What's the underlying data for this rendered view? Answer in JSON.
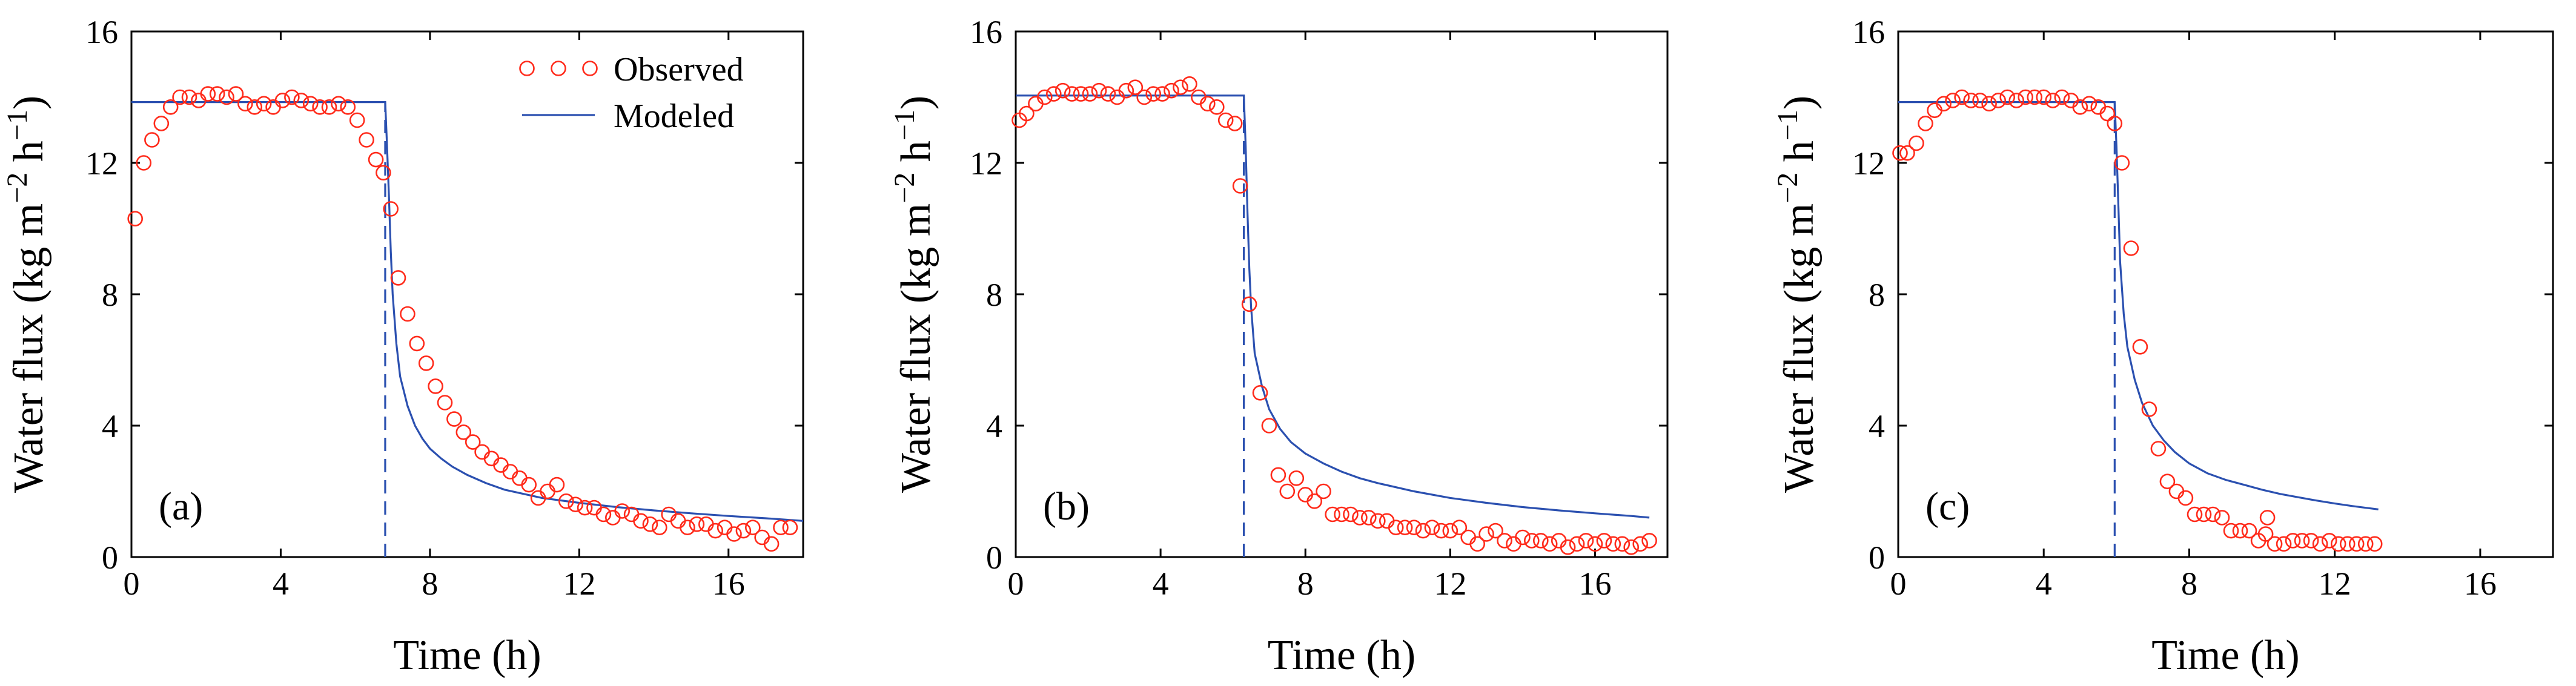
{
  "colors": {
    "observed": "#ff2a1a",
    "modeled": "#2b50b0",
    "axes": "#000000"
  },
  "legend": {
    "observed_label": "Observed",
    "modeled_label": "Modeled",
    "position": "top-right of panel (a)"
  },
  "chart_data": [
    {
      "type": "scatter+line",
      "panel_label": "(a)",
      "xlabel": "Time (h)",
      "ylabel": "Water flux (kg m−2 h−1)",
      "ylabel_parts": {
        "base": "Water flux (kg m",
        "exp1": "−2",
        "mid": " h",
        "exp2": "−1",
        "end": ")"
      },
      "xlim": [
        0,
        18
      ],
      "ylim": [
        0,
        16
      ],
      "xticks": [
        0,
        4,
        8,
        12,
        16
      ],
      "yticks": [
        0,
        4,
        8,
        12,
        16
      ],
      "switch_time": 6.8,
      "observed": {
        "name": "Observed",
        "x": [
          0.1,
          0.33,
          0.55,
          0.8,
          1.05,
          1.3,
          1.55,
          1.8,
          2.05,
          2.3,
          2.55,
          2.8,
          3.05,
          3.3,
          3.55,
          3.8,
          4.05,
          4.3,
          4.55,
          4.8,
          5.05,
          5.3,
          5.55,
          5.8,
          6.05,
          6.3,
          6.55,
          6.75,
          6.95,
          7.15,
          7.4,
          7.65,
          7.9,
          8.15,
          8.4,
          8.65,
          8.9,
          9.15,
          9.4,
          9.65,
          9.9,
          10.15,
          10.4,
          10.65,
          10.9,
          11.15,
          11.4,
          11.65,
          11.9,
          12.15,
          12.4,
          12.65,
          12.9,
          13.15,
          13.4,
          13.65,
          13.9,
          14.15,
          14.4,
          14.65,
          14.9,
          15.15,
          15.4,
          15.65,
          15.9,
          16.15,
          16.4,
          16.65,
          16.9,
          17.15,
          17.4,
          17.65
        ],
        "y": [
          10.3,
          12.0,
          12.7,
          13.2,
          13.7,
          14.0,
          14.0,
          13.9,
          14.1,
          14.1,
          14.0,
          14.1,
          13.8,
          13.7,
          13.8,
          13.7,
          13.9,
          14.0,
          13.9,
          13.8,
          13.7,
          13.7,
          13.8,
          13.7,
          13.3,
          12.7,
          12.1,
          11.7,
          10.6,
          8.5,
          7.4,
          6.5,
          5.9,
          5.2,
          4.7,
          4.2,
          3.8,
          3.5,
          3.2,
          3.0,
          2.8,
          2.6,
          2.4,
          2.2,
          1.8,
          2.0,
          2.2,
          1.7,
          1.6,
          1.5,
          1.5,
          1.3,
          1.2,
          1.4,
          1.3,
          1.1,
          1.0,
          0.9,
          1.3,
          1.1,
          0.9,
          1.0,
          1.0,
          0.8,
          0.9,
          0.7,
          0.8,
          0.9,
          0.6,
          0.4,
          0.9,
          0.9
        ]
      },
      "modeled": {
        "name": "Modeled",
        "x": [
          0,
          6.8,
          6.85,
          6.9,
          6.95,
          7.0,
          7.1,
          7.2,
          7.4,
          7.6,
          7.8,
          8.0,
          8.3,
          8.6,
          9.0,
          9.5,
          10.0,
          11.0,
          12.0,
          13.0,
          14.0,
          15.0,
          16.0,
          17.0,
          18.0
        ],
        "y": [
          13.85,
          13.85,
          12.5,
          11.0,
          9.3,
          8.0,
          6.5,
          5.5,
          4.6,
          4.0,
          3.6,
          3.3,
          3.0,
          2.75,
          2.5,
          2.25,
          2.05,
          1.8,
          1.65,
          1.52,
          1.42,
          1.33,
          1.25,
          1.18,
          1.1
        ]
      }
    },
    {
      "type": "scatter+line",
      "panel_label": "(b)",
      "xlabel": "Time (h)",
      "ylabel": "Water flux (kg m−2 h−1)",
      "ylabel_parts": {
        "base": "Water flux (kg m",
        "exp1": "−2",
        "mid": " h",
        "exp2": "−1",
        "end": ")"
      },
      "xlim": [
        0,
        18
      ],
      "ylim": [
        0,
        16
      ],
      "xticks": [
        0,
        4,
        8,
        12,
        16
      ],
      "yticks": [
        0,
        4,
        8,
        12,
        16
      ],
      "switch_time": 6.3,
      "observed": {
        "name": "Observed",
        "x": [
          0.1,
          0.3,
          0.55,
          0.8,
          1.05,
          1.3,
          1.55,
          1.8,
          2.05,
          2.3,
          2.55,
          2.8,
          3.05,
          3.3,
          3.55,
          3.8,
          4.05,
          4.3,
          4.55,
          4.8,
          5.05,
          5.3,
          5.55,
          5.8,
          6.05,
          6.2,
          6.45,
          6.75,
          7.0,
          7.25,
          7.5,
          7.75,
          8.0,
          8.25,
          8.5,
          8.75,
          9.0,
          9.25,
          9.5,
          9.75,
          10.0,
          10.25,
          10.5,
          10.75,
          11.0,
          11.25,
          11.5,
          11.75,
          12.0,
          12.25,
          12.5,
          12.75,
          13.0,
          13.25,
          13.5,
          13.75,
          14.0,
          14.25,
          14.5,
          14.75,
          15.0,
          15.25,
          15.5,
          15.75,
          16.0,
          16.25,
          16.5,
          16.75,
          17.0,
          17.25,
          17.5
        ],
        "y": [
          13.3,
          13.5,
          13.8,
          14.0,
          14.1,
          14.2,
          14.1,
          14.1,
          14.1,
          14.2,
          14.1,
          14.0,
          14.2,
          14.3,
          14.0,
          14.1,
          14.1,
          14.2,
          14.3,
          14.4,
          14.0,
          13.8,
          13.7,
          13.3,
          13.2,
          11.3,
          7.7,
          5.0,
          4.0,
          2.5,
          2.0,
          2.4,
          1.9,
          1.7,
          2.0,
          1.3,
          1.3,
          1.3,
          1.2,
          1.2,
          1.1,
          1.1,
          0.9,
          0.9,
          0.9,
          0.8,
          0.9,
          0.8,
          0.8,
          0.9,
          0.6,
          0.4,
          0.7,
          0.8,
          0.5,
          0.4,
          0.6,
          0.5,
          0.5,
          0.4,
          0.5,
          0.3,
          0.4,
          0.5,
          0.4,
          0.5,
          0.4,
          0.4,
          0.3,
          0.4,
          0.5
        ]
      },
      "modeled": {
        "name": "Modeled",
        "x": [
          0,
          6.3,
          6.35,
          6.4,
          6.45,
          6.5,
          6.6,
          6.8,
          7.0,
          7.3,
          7.6,
          8.0,
          8.5,
          9.0,
          9.5,
          10.0,
          11.0,
          12.0,
          13.0,
          14.0,
          15.0,
          16.0,
          17.0,
          17.5
        ],
        "y": [
          14.05,
          14.05,
          12.5,
          10.5,
          8.8,
          7.6,
          6.2,
          5.2,
          4.5,
          3.9,
          3.5,
          3.15,
          2.85,
          2.6,
          2.4,
          2.25,
          2.0,
          1.8,
          1.65,
          1.52,
          1.42,
          1.33,
          1.25,
          1.2
        ]
      }
    },
    {
      "type": "scatter+line",
      "panel_label": "(c)",
      "xlabel": "Time (h)",
      "ylabel": "Water flux (kg m−2 h−1)",
      "ylabel_parts": {
        "base": "Water flux (kg m",
        "exp1": "−2",
        "mid": " h",
        "exp2": "−1",
        "end": ")"
      },
      "xlim": [
        0,
        18
      ],
      "ylim": [
        0,
        16
      ],
      "xticks": [
        0,
        4,
        8,
        12,
        16
      ],
      "yticks": [
        0,
        4,
        8,
        12,
        16
      ],
      "switch_time": 5.95,
      "observed": {
        "name": "Observed",
        "x": [
          0.05,
          0.25,
          0.5,
          0.75,
          1.0,
          1.25,
          1.5,
          1.75,
          2.0,
          2.25,
          2.5,
          2.75,
          3.0,
          3.25,
          3.5,
          3.75,
          4.0,
          4.25,
          4.5,
          4.75,
          5.0,
          5.25,
          5.5,
          5.75,
          5.95,
          6.15,
          6.4,
          6.65,
          6.9,
          7.15,
          7.4,
          7.65,
          7.9,
          8.15,
          8.4,
          8.65,
          8.9,
          9.15,
          9.4,
          9.65,
          9.9,
          10.1,
          10.15,
          10.35,
          10.6,
          10.85,
          11.1,
          11.35,
          11.6,
          11.85,
          12.1,
          12.35,
          12.6,
          12.85,
          13.1
        ],
        "y": [
          12.3,
          12.3,
          12.6,
          13.2,
          13.6,
          13.8,
          13.9,
          14.0,
          13.9,
          13.9,
          13.8,
          13.9,
          14.0,
          13.9,
          14.0,
          14.0,
          14.0,
          13.9,
          14.0,
          13.9,
          13.7,
          13.8,
          13.7,
          13.5,
          13.2,
          12.0,
          9.4,
          6.4,
          4.5,
          3.3,
          2.3,
          2.0,
          1.8,
          1.3,
          1.3,
          1.3,
          1.2,
          0.8,
          0.8,
          0.8,
          0.5,
          0.7,
          1.2,
          0.4,
          0.4,
          0.5,
          0.5,
          0.5,
          0.4,
          0.5,
          0.4,
          0.4,
          0.4,
          0.4,
          0.4
        ]
      },
      "modeled": {
        "name": "Modeled",
        "x": [
          0,
          5.95,
          6.0,
          6.05,
          6.1,
          6.2,
          6.3,
          6.5,
          6.7,
          7.0,
          7.3,
          7.6,
          8.0,
          8.5,
          9.0,
          9.5,
          10.0,
          10.5,
          11.0,
          11.5,
          12.0,
          12.5,
          13.2
        ],
        "y": [
          13.85,
          13.85,
          12.5,
          10.8,
          9.0,
          7.4,
          6.4,
          5.4,
          4.7,
          4.0,
          3.55,
          3.2,
          2.85,
          2.55,
          2.35,
          2.2,
          2.05,
          1.92,
          1.82,
          1.72,
          1.63,
          1.55,
          1.45
        ]
      }
    }
  ]
}
